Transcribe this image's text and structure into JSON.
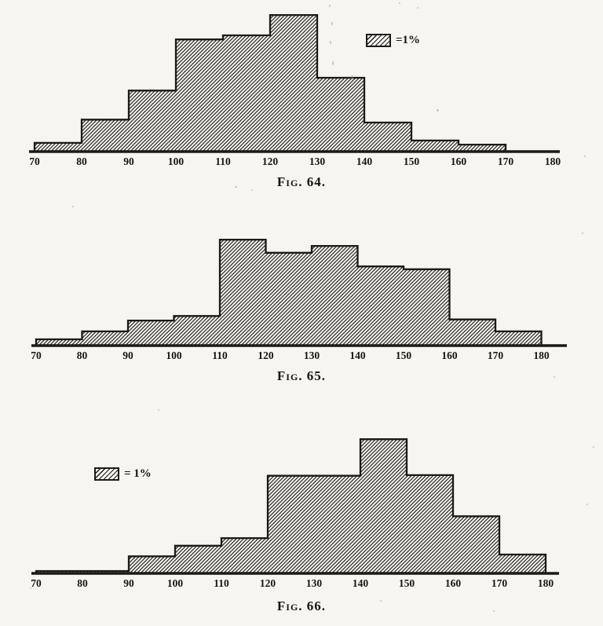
{
  "page": {
    "background": "#f6f5f1",
    "ink": "#1b1a17",
    "description": "Scanned textbook page with three hatched frequency histograms"
  },
  "figures": [
    {
      "id": "fig64",
      "caption": "Fig. 64.",
      "legend": {
        "label": "=1%",
        "meaning": "hatched rectangle equals 1 per cent"
      },
      "chart_data": {
        "type": "bar",
        "subtype": "histogram",
        "title": "Fig. 64.",
        "xlabel": "",
        "ylabel": "",
        "grid": false,
        "legend_position": "top-right",
        "x_range": [
          70,
          180
        ],
        "bin_edges": [
          70,
          80,
          90,
          100,
          110,
          120,
          130,
          140,
          150,
          160,
          170,
          180
        ],
        "tick_labels": [
          "70",
          "80",
          "90",
          "100",
          "110",
          "120",
          "130",
          "140",
          "150",
          "160",
          "170",
          "180"
        ],
        "values_percent": [
          1.5,
          5.5,
          10.5,
          19.3,
          20.0,
          23.5,
          12.7,
          5.0,
          1.9,
          1.2,
          0
        ]
      }
    },
    {
      "id": "fig65",
      "caption": "Fig. 65.",
      "legend": null,
      "chart_data": {
        "type": "bar",
        "subtype": "histogram",
        "title": "Fig. 65.",
        "xlabel": "",
        "ylabel": "",
        "grid": false,
        "legend_position": "none",
        "x_range": [
          70,
          180
        ],
        "bin_edges": [
          70,
          80,
          90,
          100,
          110,
          120,
          130,
          140,
          150,
          160,
          170,
          180
        ],
        "tick_labels": [
          "70",
          "80",
          "90",
          "100",
          "110",
          "120",
          "130",
          "140",
          "150",
          "160",
          "170",
          "180"
        ],
        "values_percent": [
          1.1,
          2.5,
          4.4,
          5.2,
          18.6,
          16.3,
          17.5,
          13.9,
          13.4,
          4.6,
          2.5
        ]
      }
    },
    {
      "id": "fig66",
      "caption": "Fig. 66.",
      "legend": {
        "label": "= 1%",
        "meaning": "hatched rectangle equals 1 per cent"
      },
      "chart_data": {
        "type": "bar",
        "subtype": "histogram",
        "title": "Fig. 66.",
        "xlabel": "",
        "ylabel": "",
        "grid": false,
        "legend_position": "left",
        "x_range": [
          70,
          180
        ],
        "bin_edges": [
          70,
          80,
          90,
          100,
          110,
          120,
          130,
          140,
          150,
          160,
          170,
          180
        ],
        "tick_labels": [
          "70",
          "80",
          "90",
          "100",
          "110",
          "120",
          "130",
          "140",
          "150",
          "160",
          "170",
          "180"
        ],
        "values_percent": [
          0.4,
          0.4,
          2.9,
          4.7,
          6.0,
          16.6,
          16.6,
          22.8,
          16.7,
          9.7,
          3.2
        ]
      }
    }
  ]
}
